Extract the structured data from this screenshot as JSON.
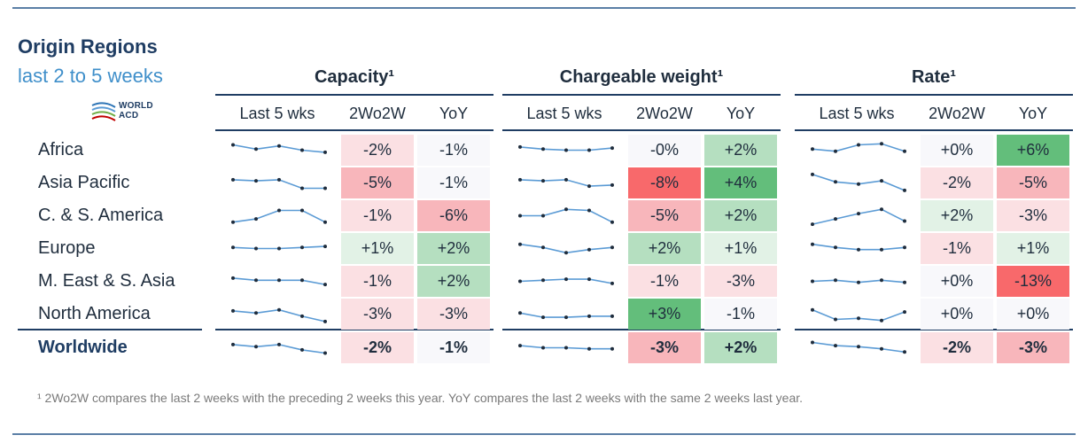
{
  "header": {
    "title": "Origin Regions",
    "subtitle": "last 2 to 5 weeks",
    "logo_text": [
      "WORLD",
      "ACD"
    ]
  },
  "columns": [
    "Last 5 wks",
    "2Wo2W",
    "YoY"
  ],
  "groups": [
    {
      "key": "capacity",
      "title": "Capacity¹"
    },
    {
      "key": "weight",
      "title": "Chargeable weight¹"
    },
    {
      "key": "rate",
      "title": "Rate¹"
    }
  ],
  "rows": [
    "Africa",
    "Asia Pacific",
    "C. & S. America",
    "Europe",
    "M. East & S. Asia",
    "North America",
    "Worldwide"
  ],
  "colors": {
    "strong_green": "#63be7b",
    "mid_green": "#b5dfc0",
    "light_green": "#e2f2e6",
    "neutral": "#f8f8fb",
    "light_red": "#fbe0e3",
    "mid_red": "#f8b6bb",
    "strong_red": "#f8696b",
    "navy": "#1f3d63",
    "spark": "#5b9bd5"
  },
  "chart_data": {
    "type": "table",
    "title": "Origin Regions",
    "subtitle": "last 2 to 5 weeks",
    "metrics": [
      "Capacity¹",
      "Chargeable weight¹",
      "Rate¹"
    ],
    "columns": [
      "Last 5 wks",
      "2Wo2W",
      "YoY"
    ],
    "capacity": {
      "2wo2w": [
        "-2%",
        "-5%",
        "-1%",
        "+1%",
        "-1%",
        "-3%",
        "-2%"
      ],
      "yoy": [
        "-1%",
        "-1%",
        "-6%",
        "+2%",
        "+2%",
        "-3%",
        "-1%"
      ],
      "2wo2w_shade": [
        "light_red",
        "mid_red",
        "light_red",
        "light_green",
        "light_red",
        "light_red",
        "light_red"
      ],
      "yoy_shade": [
        "neutral",
        "neutral",
        "mid_red",
        "mid_green",
        "mid_green",
        "light_red",
        "neutral"
      ],
      "last5wks": [
        [
          0.5,
          0.1,
          0.4,
          0.0,
          -0.2
        ],
        [
          0.3,
          0.2,
          0.3,
          -0.5,
          -0.5
        ],
        [
          -0.6,
          -0.3,
          0.5,
          0.5,
          -0.6
        ],
        [
          0.1,
          0.0,
          0.0,
          0.1,
          0.2
        ],
        [
          0.3,
          0.1,
          0.1,
          0.1,
          -0.3
        ],
        [
          0.3,
          0.1,
          0.4,
          -0.2,
          -0.7
        ],
        [
          0.3,
          0.1,
          0.3,
          -0.2,
          -0.5
        ]
      ]
    },
    "weight": {
      "2wo2w": [
        "-0%",
        "-8%",
        "-5%",
        "+2%",
        "-1%",
        "+3%",
        "-3%"
      ],
      "yoy": [
        "+2%",
        "+4%",
        "+2%",
        "+1%",
        "-3%",
        "-1%",
        "+2%"
      ],
      "2wo2w_shade": [
        "neutral",
        "strong_red",
        "mid_red",
        "mid_green",
        "light_red",
        "strong_green",
        "mid_red"
      ],
      "yoy_shade": [
        "mid_green",
        "strong_green",
        "mid_green",
        "light_green",
        "light_red",
        "neutral",
        "mid_green"
      ],
      "last5wks": [
        [
          0.3,
          0.1,
          0.0,
          0.0,
          0.2
        ],
        [
          0.3,
          0.2,
          0.3,
          -0.3,
          -0.2
        ],
        [
          0.0,
          0.0,
          0.6,
          0.5,
          -0.6
        ],
        [
          0.4,
          0.1,
          -0.4,
          -0.1,
          0.1
        ],
        [
          0.0,
          0.1,
          0.2,
          0.2,
          -0.2
        ],
        [
          0.1,
          -0.3,
          -0.3,
          -0.2,
          -0.2
        ],
        [
          0.2,
          0.0,
          0.0,
          -0.1,
          -0.1
        ]
      ]
    },
    "rate": {
      "2wo2w": [
        "+0%",
        "-2%",
        "+2%",
        "-1%",
        "+0%",
        "+0%",
        "-2%"
      ],
      "yoy": [
        "+6%",
        "-5%",
        "-3%",
        "+1%",
        "-13%",
        "+0%",
        "-3%"
      ],
      "2wo2w_shade": [
        "neutral",
        "light_red",
        "light_green",
        "light_red",
        "neutral",
        "neutral",
        "light_red"
      ],
      "yoy_shade": [
        "strong_green",
        "mid_red",
        "light_red",
        "light_green",
        "strong_red",
        "neutral",
        "mid_red"
      ],
      "last5wks": [
        [
          0.1,
          -0.1,
          0.5,
          0.6,
          -0.1
        ],
        [
          0.8,
          0.1,
          -0.1,
          0.2,
          -0.7
        ],
        [
          -0.8,
          -0.3,
          0.2,
          0.6,
          -0.5
        ],
        [
          0.4,
          0.1,
          -0.1,
          -0.1,
          0.1
        ],
        [
          0.0,
          0.1,
          -0.1,
          0.1,
          -0.1
        ],
        [
          0.4,
          -0.5,
          -0.4,
          -0.6,
          0.2
        ],
        [
          0.5,
          0.2,
          0.1,
          -0.1,
          -0.4
        ]
      ]
    }
  },
  "footnote": "¹ 2Wo2W compares the last 2 weeks with the preceding 2 weeks this year. YoY compares the last 2 weeks with the same 2 weeks last year."
}
